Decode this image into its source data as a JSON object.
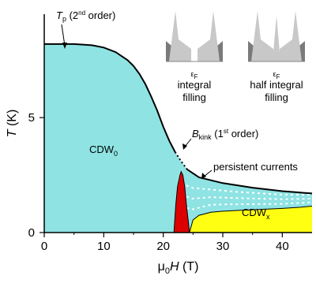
{
  "chart_data": {
    "type": "area",
    "title": "",
    "xlabel": {
      "prefix": "μ",
      "prefix_sub": "0",
      "main": "H",
      "unit": " (T)"
    },
    "ylabel": {
      "main": "T",
      "unit": " (K)"
    },
    "xlim": [
      0,
      45
    ],
    "ylim": [
      0,
      9.5
    ],
    "x_ticks": [
      "0",
      "10",
      "20",
      "30",
      "40"
    ],
    "x_tick_values": [
      0,
      10,
      20,
      30,
      40
    ],
    "y_ticks": [
      "0",
      "5"
    ],
    "y_tick_values": [
      0,
      5
    ],
    "colors": {
      "cdw0": "#8fe3e3",
      "cdwx": "#ffff11",
      "red_region": "#dd0000",
      "boundary": "#000000",
      "persistent": "#ffffff",
      "inset_light": "#c8c8c8",
      "inset_dark": "#7a7a7a"
    },
    "series": [
      {
        "id": "upper_boundary",
        "x": [
          0,
          2,
          5,
          8,
          10,
          12,
          14,
          15,
          16,
          17,
          18,
          19,
          20,
          21,
          22,
          22.5,
          23,
          24,
          26,
          30,
          35,
          40,
          45
        ],
        "y": [
          8.2,
          8.2,
          8.2,
          8.15,
          8.05,
          7.85,
          7.5,
          7.25,
          6.9,
          6.45,
          5.9,
          5.3,
          4.6,
          4.0,
          3.5,
          3.3,
          3.1,
          2.75,
          2.4,
          2.15,
          1.95,
          1.8,
          1.7
        ]
      },
      {
        "id": "cdwx_boundary",
        "x": [
          24.4,
          25,
          26,
          28,
          30,
          33,
          36,
          40,
          43,
          45
        ],
        "y": [
          0,
          0.55,
          0.75,
          0.88,
          0.93,
          0.97,
          1.0,
          1.05,
          1.1,
          1.15
        ]
      },
      {
        "id": "red_region",
        "x": [
          21.8,
          22.1,
          22.4,
          22.8,
          23.0,
          23.3,
          23.6,
          23.9,
          24.2,
          24.4
        ],
        "y": [
          0,
          1.2,
          2.0,
          2.5,
          2.65,
          2.5,
          2.0,
          1.2,
          0.5,
          0
        ]
      },
      {
        "id": "persistent_band_top",
        "x": [
          23,
          25,
          28,
          32,
          36,
          40,
          45
        ],
        "y": [
          2.65,
          2.4,
          2.2,
          2.05,
          1.95,
          1.85,
          1.8
        ]
      }
    ],
    "annotations": {
      "tp": {
        "symbol": "T",
        "sub": "p",
        "text_before": " (2",
        "sup": "nd",
        "text_after": " order)"
      },
      "bkink": {
        "symbol": "B",
        "sub": "kink",
        "text_before": " (1",
        "sup": "st",
        "text_after": " order)"
      },
      "persistent": "persistent currents",
      "cdw0": {
        "main": "CDW",
        "sub": "0"
      },
      "cdwx": {
        "main": "CDW",
        "sub": "x"
      }
    },
    "insets": [
      {
        "id": "integral",
        "label_line1": "integral",
        "label_line2": "filling",
        "ef_symbol": "ε",
        "ef_sub": "F"
      },
      {
        "id": "half_integral",
        "label_line1": "half integral",
        "label_line2": "filling",
        "ef_symbol": "ε",
        "ef_sub": "F"
      }
    ]
  }
}
